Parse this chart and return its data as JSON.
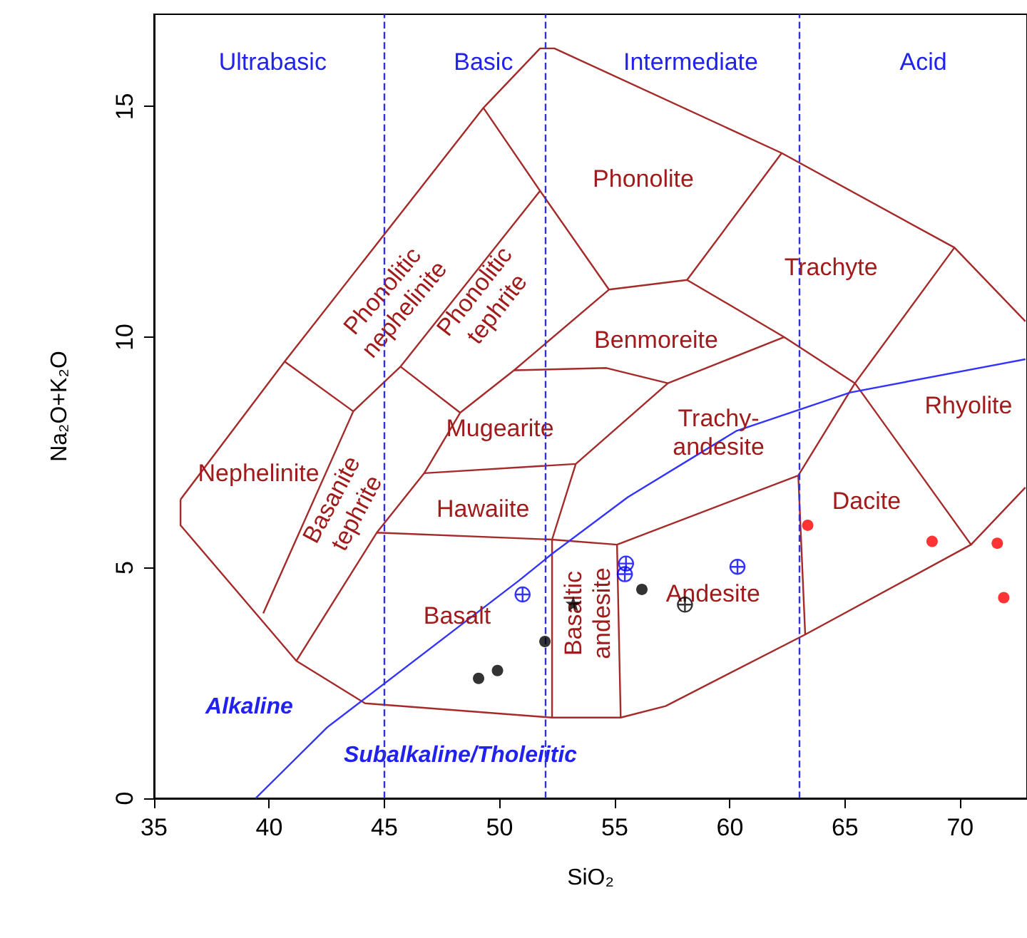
{
  "chart_data": {
    "type": "scatter",
    "xlabel": "SiO₂",
    "ylabel": "Na₂O+K₂O",
    "xlim": [
      35,
      72.9
    ],
    "ylim": [
      0,
      17
    ],
    "xticks": [
      35,
      40,
      45,
      50,
      55,
      60,
      65,
      70
    ],
    "yticks": [
      0,
      5,
      10,
      15
    ],
    "grid": false,
    "ref_lines": [
      {
        "axis": "x",
        "value": 45,
        "color": "#3333cc",
        "line_style": "dashed"
      },
      {
        "axis": "x",
        "value": 52,
        "color": "#3333cc",
        "line_style": "dashed"
      },
      {
        "axis": "x",
        "value": 63,
        "color": "#3333cc",
        "line_style": "dashed"
      }
    ],
    "annotations": [
      "Ultrabasic",
      "Basic",
      "Intermediate",
      "Acid",
      "Alkaline",
      "Subalkaline/Tholeiitic",
      "Phonolite",
      "Trachyte",
      "Benmoreite",
      "Mugearite",
      "Trachy-\nandesite",
      "Hawaiite",
      "Rhyolite",
      "Dacite",
      "Nephelinite",
      "Basalt",
      "Andesite",
      "Basaltic\nandesite",
      "Phonolitic\nnephelinite",
      "Phonolitic\ntephrite",
      "Basanite\ntephrite"
    ],
    "series": [
      {
        "type": "line",
        "color": "#a52a2a",
        "marker": "none",
        "x": [
          36.15,
          36.15,
          41.18,
          44.16,
          52.28,
          55.26,
          57.21,
          63.27,
          70.47,
          72.83,
          null,
          36.15,
          40.67,
          49.3,
          51.76,
          52.38,
          62.25,
          69.75,
          72.83,
          null,
          40.67,
          43.65,
          39.74,
          null,
          43.65,
          45.7,
          51.76,
          null,
          49.3,
          51.76,
          54.75,
          null,
          45.7,
          48.29,
          null,
          41.18,
          44.67,
          46.73,
          48.29,
          null,
          48.29,
          50.63,
          54.75,
          null,
          50.63,
          54.64,
          57.31,
          null,
          54.75,
          58.14,
          62.25,
          null,
          58.14,
          62.36,
          65.43,
          69.75,
          null,
          57.31,
          62.36,
          null,
          57.31,
          53.31,
          52.28,
          null,
          46.73,
          53.31,
          null,
          44.67,
          52.28,
          55.1,
          62.97,
          65.43,
          70.47,
          null,
          52.28,
          52.28,
          null,
          55.1,
          55.26,
          null,
          62.97,
          63.27
        ],
        "values": [
          6.48,
          5.92,
          2.98,
          2.06,
          1.75,
          1.75,
          2.0,
          3.55,
          5.5,
          6.74,
          null,
          6.48,
          9.47,
          14.97,
          16.26,
          16.26,
          13.99,
          11.94,
          10.34,
          null,
          9.47,
          8.39,
          4.01,
          null,
          8.39,
          9.36,
          13.17,
          null,
          14.97,
          13.17,
          11.03,
          null,
          9.36,
          8.36,
          null,
          2.98,
          5.76,
          7.05,
          8.36,
          null,
          8.36,
          9.28,
          11.03,
          null,
          9.28,
          9.33,
          9.0,
          null,
          11.03,
          11.24,
          13.99,
          null,
          11.24,
          10.0,
          9.0,
          11.94,
          null,
          9.0,
          10.0,
          null,
          9.0,
          7.25,
          5.61,
          null,
          7.05,
          7.25,
          null,
          5.76,
          5.61,
          5.5,
          7.0,
          9.0,
          5.5,
          null,
          5.61,
          1.75,
          null,
          5.5,
          1.75,
          null,
          7.0,
          3.55
        ]
      },
      {
        "type": "line",
        "color": "#3333ff",
        "marker": "none",
        "x": [
          39.41,
          42.52,
          50.84,
          52.28,
          55.57,
          60.3,
          65.23,
          72.83
        ],
        "values": [
          0,
          1.54,
          4.72,
          5.3,
          6.53,
          7.97,
          8.8,
          9.52
        ]
      },
      {
        "color": "#000000",
        "marker": "circle",
        "x": [
          51.97,
          49.91,
          49.09,
          56.18
        ],
        "values": [
          3.4,
          2.77,
          2.6,
          4.53
        ]
      },
      {
        "color": "#0000ff",
        "marker": "cross",
        "x": [
          51.0,
          55.49,
          55.44,
          60.33
        ],
        "values": [
          4.42,
          5.09,
          4.86,
          5.02
        ]
      },
      {
        "color": "#000000",
        "marker": "cross",
        "x": [
          58.05
        ],
        "values": [
          4.2
        ]
      },
      {
        "color": "#000000",
        "marker": "star",
        "x": [
          53.2
        ],
        "values": [
          4.22
        ]
      },
      {
        "color": "#ff0000",
        "marker": "circle",
        "x": [
          63.38,
          68.78,
          71.61,
          71.89
        ],
        "values": [
          5.92,
          5.57,
          5.53,
          4.35
        ]
      }
    ]
  }
}
